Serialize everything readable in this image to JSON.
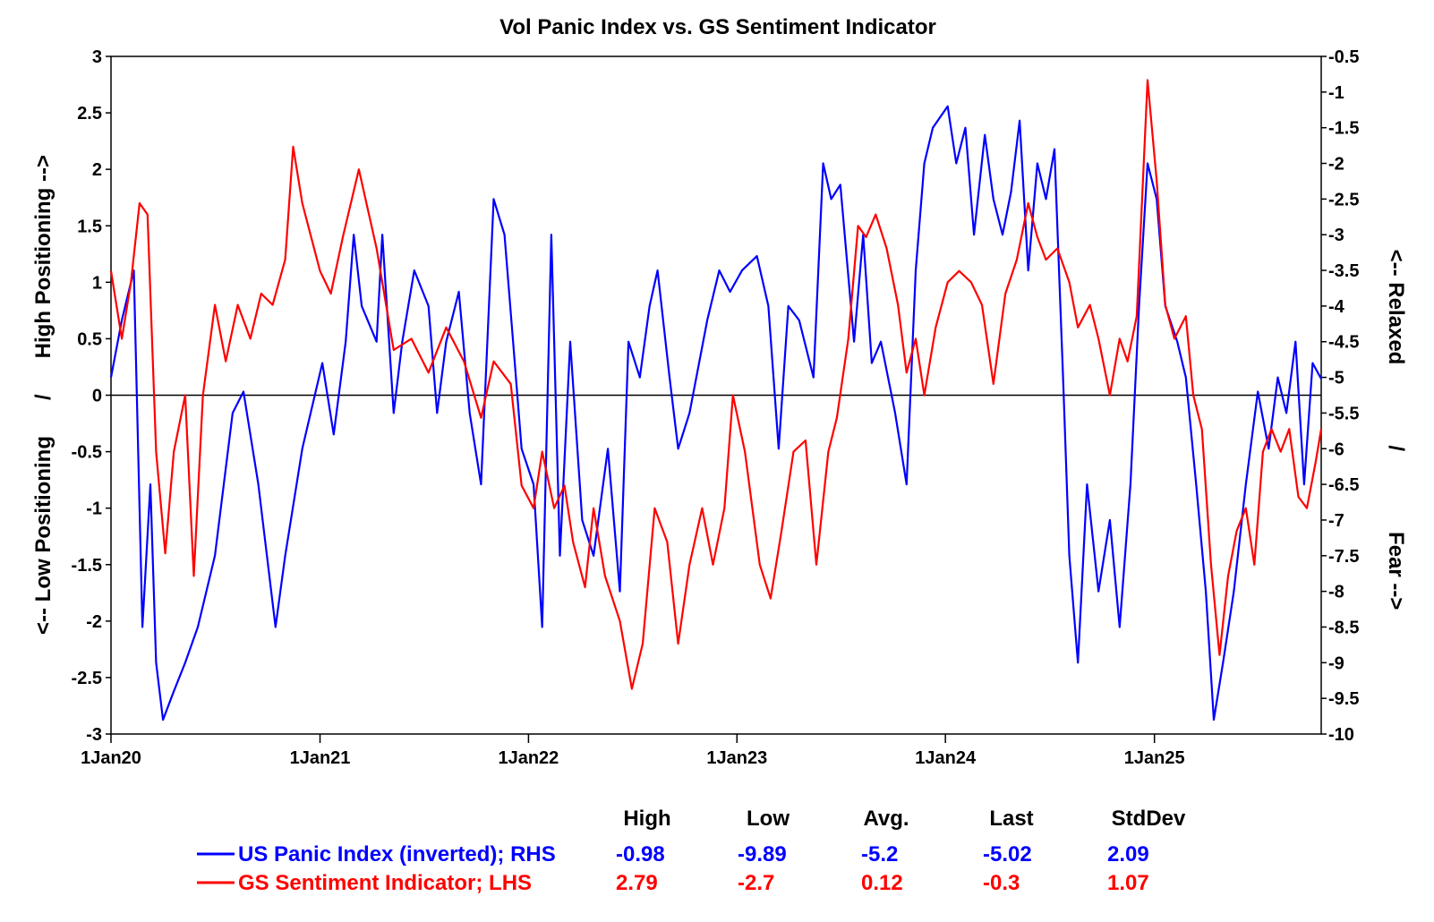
{
  "chart_data": {
    "type": "line",
    "title": "Vol Panic Index vs. GS Sentiment Indicator",
    "x_axis": {
      "tick_labels": [
        "1Jan20",
        "1Jan21",
        "1Jan22",
        "1Jan23",
        "1Jan24",
        "1Jan25"
      ],
      "tick_dates": [
        "2020-01-01",
        "2021-01-01",
        "2022-01-01",
        "2023-01-01",
        "2024-01-01",
        "2025-01-01"
      ],
      "range": [
        "2020-01-01",
        "2025-10-20"
      ]
    },
    "y_left": {
      "label_parts": [
        "<-- Low Positioning",
        "/",
        "High Positioning -->"
      ],
      "range": [
        -3,
        3
      ],
      "ticks": [
        -3,
        -2.5,
        -2,
        -1.5,
        -1,
        -0.5,
        0,
        0.5,
        1,
        1.5,
        2,
        2.5,
        3
      ]
    },
    "y_right": {
      "label_parts": [
        "<-- Relaxed",
        "/",
        "Fear -->"
      ],
      "range": [
        -10,
        -0.5
      ],
      "ticks": [
        -0.5,
        -1,
        -1.5,
        -2,
        -2.5,
        -3,
        -3.5,
        -4,
        -4.5,
        -5,
        -5.5,
        -6,
        -6.5,
        -7,
        -7.5,
        -8,
        -8.5,
        -9,
        -9.5,
        -10
      ]
    },
    "zero_line": 0,
    "stats_headers": [
      "High",
      "Low",
      "Avg.",
      "Last",
      "StdDev"
    ],
    "series": [
      {
        "name": "US Panic Index (inverted); RHS",
        "axis": "right",
        "color": "#0000ff",
        "stats": [
          "-0.98",
          "-9.89",
          "-5.2",
          "-5.02",
          "2.09"
        ],
        "points": [
          [
            "2020-01-01",
            -5.0
          ],
          [
            "2020-01-20",
            -4.2
          ],
          [
            "2020-02-10",
            -3.5
          ],
          [
            "2020-02-25",
            -8.5
          ],
          [
            "2020-03-10",
            -6.5
          ],
          [
            "2020-03-20",
            -9.0
          ],
          [
            "2020-04-01",
            -9.8
          ],
          [
            "2020-04-20",
            -9.4
          ],
          [
            "2020-05-10",
            -9.0
          ],
          [
            "2020-06-01",
            -8.5
          ],
          [
            "2020-07-01",
            -7.5
          ],
          [
            "2020-08-01",
            -5.5
          ],
          [
            "2020-08-20",
            -5.2
          ],
          [
            "2020-09-15",
            -6.5
          ],
          [
            "2020-10-15",
            -8.5
          ],
          [
            "2020-11-01",
            -7.5
          ],
          [
            "2020-12-01",
            -6.0
          ],
          [
            "2021-01-05",
            -4.8
          ],
          [
            "2021-01-25",
            -5.8
          ],
          [
            "2021-02-15",
            -4.5
          ],
          [
            "2021-03-01",
            -3.0
          ],
          [
            "2021-03-15",
            -4.0
          ],
          [
            "2021-04-10",
            -4.5
          ],
          [
            "2021-04-20",
            -3.0
          ],
          [
            "2021-05-10",
            -5.5
          ],
          [
            "2021-05-25",
            -4.5
          ],
          [
            "2021-06-15",
            -3.5
          ],
          [
            "2021-07-10",
            -4.0
          ],
          [
            "2021-07-25",
            -5.5
          ],
          [
            "2021-08-10",
            -4.5
          ],
          [
            "2021-09-01",
            -3.8
          ],
          [
            "2021-09-20",
            -5.5
          ],
          [
            "2021-10-10",
            -6.5
          ],
          [
            "2021-11-01",
            -2.5
          ],
          [
            "2021-11-20",
            -3.0
          ],
          [
            "2021-12-05",
            -4.5
          ],
          [
            "2021-12-20",
            -6.0
          ],
          [
            "2022-01-10",
            -6.5
          ],
          [
            "2022-01-25",
            -8.5
          ],
          [
            "2022-02-10",
            -3.0
          ],
          [
            "2022-02-25",
            -7.5
          ],
          [
            "2022-03-15",
            -4.5
          ],
          [
            "2022-04-05",
            -7.0
          ],
          [
            "2022-04-25",
            -7.5
          ],
          [
            "2022-05-20",
            -6.0
          ],
          [
            "2022-06-10",
            -8.0
          ],
          [
            "2022-06-25",
            -4.5
          ],
          [
            "2022-07-15",
            -5.0
          ],
          [
            "2022-08-01",
            -4.0
          ],
          [
            "2022-08-15",
            -3.5
          ],
          [
            "2022-09-05",
            -5.0
          ],
          [
            "2022-09-20",
            -6.0
          ],
          [
            "2022-10-10",
            -5.5
          ],
          [
            "2022-11-10",
            -4.2
          ],
          [
            "2022-12-01",
            -3.5
          ],
          [
            "2022-12-20",
            -3.8
          ],
          [
            "2023-01-10",
            -3.5
          ],
          [
            "2023-02-05",
            -3.3
          ],
          [
            "2023-02-25",
            -4.0
          ],
          [
            "2023-03-15",
            -6.0
          ],
          [
            "2023-04-01",
            -4.0
          ],
          [
            "2023-04-20",
            -4.2
          ],
          [
            "2023-05-15",
            -5.0
          ],
          [
            "2023-06-01",
            -2.0
          ],
          [
            "2023-06-15",
            -2.5
          ],
          [
            "2023-07-01",
            -2.3
          ],
          [
            "2023-07-25",
            -4.5
          ],
          [
            "2023-08-10",
            -3.0
          ],
          [
            "2023-08-25",
            -4.8
          ],
          [
            "2023-09-10",
            -4.5
          ],
          [
            "2023-10-05",
            -5.5
          ],
          [
            "2023-10-25",
            -6.5
          ],
          [
            "2023-11-10",
            -3.5
          ],
          [
            "2023-11-25",
            -2.0
          ],
          [
            "2023-12-10",
            -1.5
          ],
          [
            "2024-01-05",
            -1.2
          ],
          [
            "2024-01-20",
            -2.0
          ],
          [
            "2024-02-05",
            -1.5
          ],
          [
            "2024-02-20",
            -3.0
          ],
          [
            "2024-03-10",
            -1.6
          ],
          [
            "2024-03-25",
            -2.5
          ],
          [
            "2024-04-10",
            -3.0
          ],
          [
            "2024-04-25",
            -2.4
          ],
          [
            "2024-05-10",
            -1.4
          ],
          [
            "2024-05-25",
            -3.5
          ],
          [
            "2024-06-10",
            -2.0
          ],
          [
            "2024-06-25",
            -2.5
          ],
          [
            "2024-07-10",
            -1.8
          ],
          [
            "2024-07-25",
            -5.0
          ],
          [
            "2024-08-05",
            -7.5
          ],
          [
            "2024-08-20",
            -9.0
          ],
          [
            "2024-09-05",
            -6.5
          ],
          [
            "2024-09-25",
            -8.0
          ],
          [
            "2024-10-15",
            -7.0
          ],
          [
            "2024-11-01",
            -8.5
          ],
          [
            "2024-11-20",
            -6.5
          ],
          [
            "2024-12-05",
            -4.0
          ],
          [
            "2024-12-20",
            -2.0
          ],
          [
            "2025-01-05",
            -2.5
          ],
          [
            "2025-01-20",
            -4.0
          ],
          [
            "2025-02-10",
            -4.5
          ],
          [
            "2025-02-25",
            -5.0
          ],
          [
            "2025-03-15",
            -6.5
          ],
          [
            "2025-04-01",
            -8.0
          ],
          [
            "2025-04-15",
            -9.8
          ],
          [
            "2025-05-01",
            -9.0
          ],
          [
            "2025-05-20",
            -8.0
          ],
          [
            "2025-06-10",
            -6.5
          ],
          [
            "2025-07-01",
            -5.2
          ],
          [
            "2025-07-20",
            -6.0
          ],
          [
            "2025-08-05",
            -5.0
          ],
          [
            "2025-08-20",
            -5.5
          ],
          [
            "2025-09-05",
            -4.5
          ],
          [
            "2025-09-20",
            -6.5
          ],
          [
            "2025-10-05",
            -4.8
          ],
          [
            "2025-10-20",
            -5.02
          ]
        ]
      },
      {
        "name": "GS Sentiment Indicator; LHS",
        "axis": "left",
        "color": "#ff0000",
        "stats": [
          "2.79",
          "-2.7",
          "0.12",
          "-0.3",
          "1.07"
        ],
        "points": [
          [
            "2020-01-01",
            1.1
          ],
          [
            "2020-01-20",
            0.5
          ],
          [
            "2020-02-05",
            1.0
          ],
          [
            "2020-02-20",
            1.7
          ],
          [
            "2020-03-05",
            1.6
          ],
          [
            "2020-03-20",
            -0.5
          ],
          [
            "2020-04-05",
            -1.4
          ],
          [
            "2020-04-20",
            -0.5
          ],
          [
            "2020-05-10",
            0.0
          ],
          [
            "2020-05-25",
            -1.6
          ],
          [
            "2020-06-10",
            0.0
          ],
          [
            "2020-07-01",
            0.8
          ],
          [
            "2020-07-20",
            0.3
          ],
          [
            "2020-08-10",
            0.8
          ],
          [
            "2020-09-01",
            0.5
          ],
          [
            "2020-09-20",
            0.9
          ],
          [
            "2020-10-10",
            0.8
          ],
          [
            "2020-11-01",
            1.2
          ],
          [
            "2020-11-15",
            2.2
          ],
          [
            "2020-12-01",
            1.7
          ],
          [
            "2021-01-01",
            1.1
          ],
          [
            "2021-01-20",
            0.9
          ],
          [
            "2021-02-10",
            1.4
          ],
          [
            "2021-03-10",
            2.0
          ],
          [
            "2021-04-10",
            1.3
          ],
          [
            "2021-05-10",
            0.4
          ],
          [
            "2021-06-10",
            0.5
          ],
          [
            "2021-07-10",
            0.2
          ],
          [
            "2021-08-10",
            0.6
          ],
          [
            "2021-09-10",
            0.3
          ],
          [
            "2021-10-10",
            -0.2
          ],
          [
            "2021-11-01",
            0.3
          ],
          [
            "2021-12-01",
            0.1
          ],
          [
            "2021-12-20",
            -0.8
          ],
          [
            "2022-01-10",
            -1.0
          ],
          [
            "2022-01-25",
            -0.5
          ],
          [
            "2022-02-15",
            -1.0
          ],
          [
            "2022-03-05",
            -0.8
          ],
          [
            "2022-03-20",
            -1.3
          ],
          [
            "2022-04-10",
            -1.7
          ],
          [
            "2022-04-25",
            -1.0
          ],
          [
            "2022-05-15",
            -1.6
          ],
          [
            "2022-06-10",
            -2.0
          ],
          [
            "2022-07-01",
            -2.6
          ],
          [
            "2022-07-20",
            -2.2
          ],
          [
            "2022-08-10",
            -1.0
          ],
          [
            "2022-09-01",
            -1.3
          ],
          [
            "2022-09-20",
            -2.2
          ],
          [
            "2022-10-10",
            -1.5
          ],
          [
            "2022-11-01",
            -1.0
          ],
          [
            "2022-11-20",
            -1.5
          ],
          [
            "2022-12-10",
            -1.0
          ],
          [
            "2022-12-25",
            0.0
          ],
          [
            "2023-01-15",
            -0.5
          ],
          [
            "2023-02-10",
            -1.5
          ],
          [
            "2023-03-01",
            -1.8
          ],
          [
            "2023-03-20",
            -1.2
          ],
          [
            "2023-04-10",
            -0.5
          ],
          [
            "2023-05-01",
            -0.4
          ],
          [
            "2023-05-20",
            -1.5
          ],
          [
            "2023-06-10",
            -0.5
          ],
          [
            "2023-06-25",
            -0.2
          ],
          [
            "2023-07-15",
            0.5
          ],
          [
            "2023-08-01",
            1.5
          ],
          [
            "2023-08-15",
            1.4
          ],
          [
            "2023-09-01",
            1.6
          ],
          [
            "2023-09-20",
            1.3
          ],
          [
            "2023-10-10",
            0.8
          ],
          [
            "2023-10-25",
            0.2
          ],
          [
            "2023-11-10",
            0.5
          ],
          [
            "2023-11-25",
            0.0
          ],
          [
            "2023-12-15",
            0.6
          ],
          [
            "2024-01-05",
            1.0
          ],
          [
            "2024-01-25",
            1.1
          ],
          [
            "2024-02-15",
            1.0
          ],
          [
            "2024-03-05",
            0.8
          ],
          [
            "2024-03-25",
            0.1
          ],
          [
            "2024-04-15",
            0.9
          ],
          [
            "2024-05-05",
            1.2
          ],
          [
            "2024-05-25",
            1.7
          ],
          [
            "2024-06-10",
            1.4
          ],
          [
            "2024-06-25",
            1.2
          ],
          [
            "2024-07-15",
            1.3
          ],
          [
            "2024-08-05",
            1.0
          ],
          [
            "2024-08-20",
            0.6
          ],
          [
            "2024-09-10",
            0.8
          ],
          [
            "2024-09-25",
            0.5
          ],
          [
            "2024-10-15",
            0.0
          ],
          [
            "2024-11-01",
            0.5
          ],
          [
            "2024-11-15",
            0.3
          ],
          [
            "2024-12-01",
            0.7
          ],
          [
            "2024-12-20",
            2.79
          ],
          [
            "2025-01-05",
            1.9
          ],
          [
            "2025-01-20",
            0.8
          ],
          [
            "2025-02-05",
            0.5
          ],
          [
            "2025-02-25",
            0.7
          ],
          [
            "2025-03-10",
            0.0
          ],
          [
            "2025-03-25",
            -0.3
          ],
          [
            "2025-04-10",
            -1.5
          ],
          [
            "2025-04-25",
            -2.3
          ],
          [
            "2025-05-10",
            -1.6
          ],
          [
            "2025-05-25",
            -1.2
          ],
          [
            "2025-06-10",
            -1.0
          ],
          [
            "2025-06-25",
            -1.5
          ],
          [
            "2025-07-10",
            -0.5
          ],
          [
            "2025-07-25",
            -0.3
          ],
          [
            "2025-08-10",
            -0.5
          ],
          [
            "2025-08-25",
            -0.3
          ],
          [
            "2025-09-10",
            -0.9
          ],
          [
            "2025-09-25",
            -1.0
          ],
          [
            "2025-10-10",
            -0.6
          ],
          [
            "2025-10-20",
            -0.3
          ]
        ]
      }
    ]
  }
}
